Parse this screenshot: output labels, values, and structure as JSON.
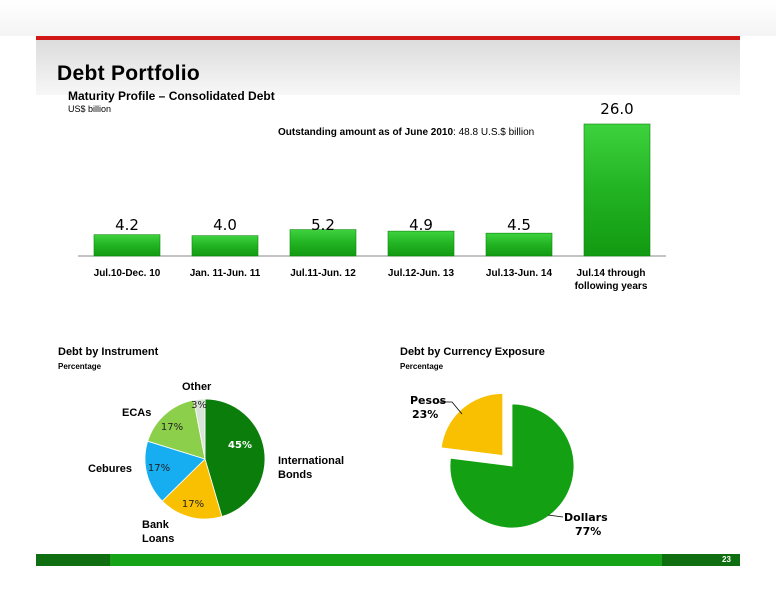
{
  "slide": {
    "title": "Debt Portfolio",
    "page_number": "23"
  },
  "colors": {
    "bar_green": "#22b322",
    "accent_red": "#d01818",
    "dark_green": "#0a7d0a",
    "yellow": "#f8c000",
    "light_green": "#8ccf4a",
    "sky_blue": "#16aef0",
    "pale_gray": "#d9e4d9"
  },
  "chart_data": [
    {
      "type": "bar",
      "title": "Maturity Profile – Consolidated Debt",
      "unit": "US$ billion",
      "annotation_bold": "Outstanding amount as of June 2010",
      "annotation_value": ": 48.8 U.S.$ billion",
      "categories": [
        "Jul.10-Dec. 10",
        "Jan. 11-Jun. 11",
        "Jul.11-Jun. 12",
        "Jul.12-Jun. 13",
        "Jul.13-Jun. 14",
        "Jul.14 through following years"
      ],
      "values": [
        4.2,
        4.0,
        5.2,
        4.9,
        4.5,
        26.0
      ],
      "value_labels": [
        "4.2",
        "4.0",
        "5.2",
        "4.9",
        "4.5",
        "26.0"
      ]
    },
    {
      "type": "pie",
      "title": "Debt by Instrument",
      "subtitle": "Percentage",
      "slices": [
        {
          "label": "International Bonds",
          "value": 45,
          "pct_label": "45%",
          "color": "#0a7d0a"
        },
        {
          "label": "Bank Loans",
          "value": 17,
          "pct_label": "17%",
          "color": "#f8c000"
        },
        {
          "label": "Cebures",
          "value": 17,
          "pct_label": "17%",
          "color": "#16aef0"
        },
        {
          "label": "ECAs",
          "value": 17,
          "pct_label": "17%",
          "color": "#8ccf4a"
        },
        {
          "label": "Other",
          "value": 3,
          "pct_label": "3%",
          "color": "#d9e4d9"
        }
      ]
    },
    {
      "type": "pie",
      "title": "Debt by Currency Exposure",
      "subtitle": "Percentage",
      "slices": [
        {
          "label": "Dollars",
          "value": 77,
          "pct_label": "77%",
          "color": "#13a013"
        },
        {
          "label": "Pesos",
          "value": 23,
          "pct_label": "23%",
          "color": "#f8c000"
        }
      ]
    }
  ]
}
